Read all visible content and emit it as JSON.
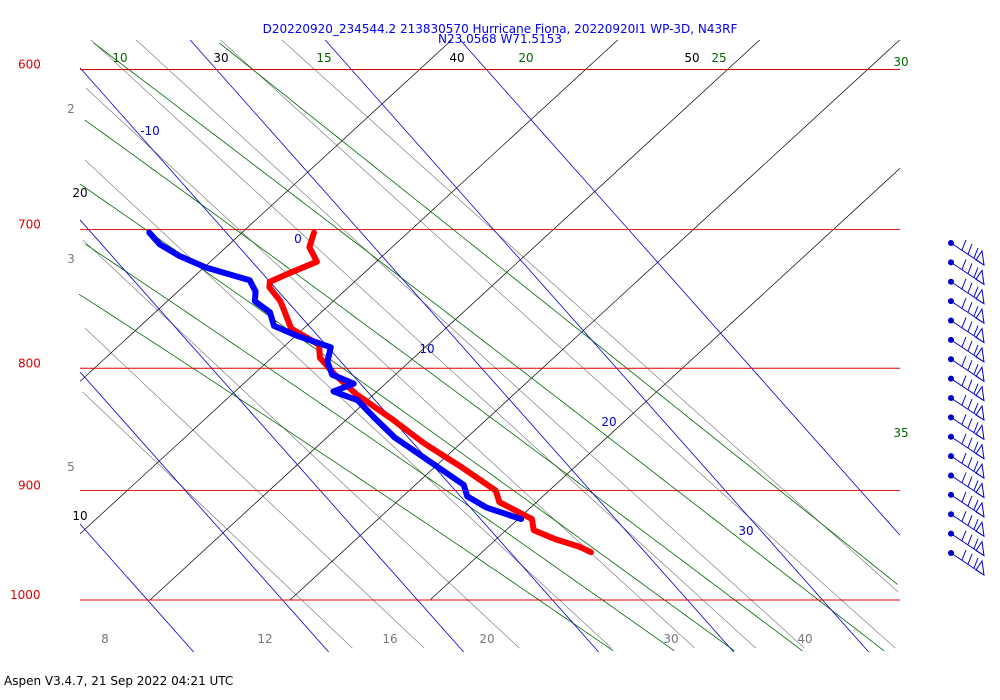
{
  "header": {
    "title_line1": "D20220920_234544.2 213830570 Hurricane Fiona, 20220920I1 WP-3D, N43RF",
    "title_line2": "N23.0568 W71.5153"
  },
  "footer": {
    "text": "Aspen V3.4.7, 21 Sep 2022  04:21 UTC"
  },
  "colors": {
    "isobar": "#dd0000",
    "isotherm": "#0000cc",
    "dry_adiabat": "#000000",
    "moist_adiabat": "#006600",
    "mixing_ratio": "#777777",
    "temperature_trace": "#ff0000",
    "dewpoint_trace": "#0000ff",
    "wind_barb": "#0000cc"
  },
  "chart_data": {
    "type": "skew-t",
    "pressure_range_hpa": [
      600,
      1000
    ],
    "pressure_levels": [
      {
        "p": 600,
        "label": "600"
      },
      {
        "p": 700,
        "label": "700"
      },
      {
        "p": 800,
        "label": "800"
      },
      {
        "p": 900,
        "label": "900"
      },
      {
        "p": 1000,
        "label": "1000"
      }
    ],
    "isotherms_c": [
      {
        "t": -10,
        "label": "-10"
      },
      {
        "t": 0,
        "label": "0"
      },
      {
        "t": 10,
        "label": "10"
      },
      {
        "t": 20,
        "label": "20"
      },
      {
        "t": 30,
        "label": "30"
      }
    ],
    "dry_adiabat_labels": [
      {
        "value": "30"
      },
      {
        "value": "40"
      },
      {
        "value": "50"
      },
      {
        "value": "20"
      },
      {
        "value": "10"
      }
    ],
    "moist_adiabat_labels": [
      {
        "value": "10"
      },
      {
        "value": "15"
      },
      {
        "value": "20"
      },
      {
        "value": "25"
      },
      {
        "value": "30"
      },
      {
        "value": "35"
      }
    ],
    "mixing_ratio_side_labels": [
      {
        "value": "2"
      },
      {
        "value": "3"
      },
      {
        "value": "5"
      }
    ],
    "mixing_ratio_bottom_labels": [
      {
        "value": "8"
      },
      {
        "value": "12"
      },
      {
        "value": "16"
      },
      {
        "value": "20"
      },
      {
        "value": "30"
      },
      {
        "value": "40"
      }
    ],
    "temperature_profile": [
      {
        "p": 702,
        "t": 16.5
      },
      {
        "p": 712,
        "t": 15.2
      },
      {
        "p": 722,
        "t": 14.8
      },
      {
        "p": 730,
        "t": 12.0
      },
      {
        "p": 736,
        "t": 10.0
      },
      {
        "p": 740,
        "t": 9.6
      },
      {
        "p": 750,
        "t": 9.5
      },
      {
        "p": 760,
        "t": 9.0
      },
      {
        "p": 770,
        "t": 8.5
      },
      {
        "p": 782,
        "t": 9.5
      },
      {
        "p": 792,
        "t": 8.7
      },
      {
        "p": 805,
        "t": 8.7
      },
      {
        "p": 820,
        "t": 9.0
      },
      {
        "p": 840,
        "t": 10.0
      },
      {
        "p": 860,
        "t": 10.8
      },
      {
        "p": 880,
        "t": 12.0
      },
      {
        "p": 900,
        "t": 13.0
      },
      {
        "p": 910,
        "t": 12.5
      },
      {
        "p": 925,
        "t": 13.8
      },
      {
        "p": 935,
        "t": 13.2
      },
      {
        "p": 943,
        "t": 14.2
      },
      {
        "p": 950,
        "t": 15.5
      },
      {
        "p": 955,
        "t": 16.0
      }
    ],
    "dewpoint_profile": [
      {
        "p": 702,
        "t": 4.3
      },
      {
        "p": 710,
        "t": 4.3
      },
      {
        "p": 718,
        "t": 5.0
      },
      {
        "p": 726,
        "t": 6.2
      },
      {
        "p": 735,
        "t": 8.6
      },
      {
        "p": 743,
        "t": 8.3
      },
      {
        "p": 750,
        "t": 7.6
      },
      {
        "p": 758,
        "t": 8.0
      },
      {
        "p": 768,
        "t": 7.4
      },
      {
        "p": 775,
        "t": 8.4
      },
      {
        "p": 784,
        "t": 10.2
      },
      {
        "p": 795,
        "t": 9.0
      },
      {
        "p": 805,
        "t": 8.5
      },
      {
        "p": 812,
        "t": 9.5
      },
      {
        "p": 818,
        "t": 7.5
      },
      {
        "p": 825,
        "t": 8.7
      },
      {
        "p": 840,
        "t": 8.8
      },
      {
        "p": 855,
        "t": 9.0
      },
      {
        "p": 875,
        "t": 10.0
      },
      {
        "p": 895,
        "t": 11.0
      },
      {
        "p": 905,
        "t": 10.5
      },
      {
        "p": 915,
        "t": 11.2
      },
      {
        "p": 925,
        "t": 13.0
      }
    ],
    "wind_barb_count": 17
  }
}
